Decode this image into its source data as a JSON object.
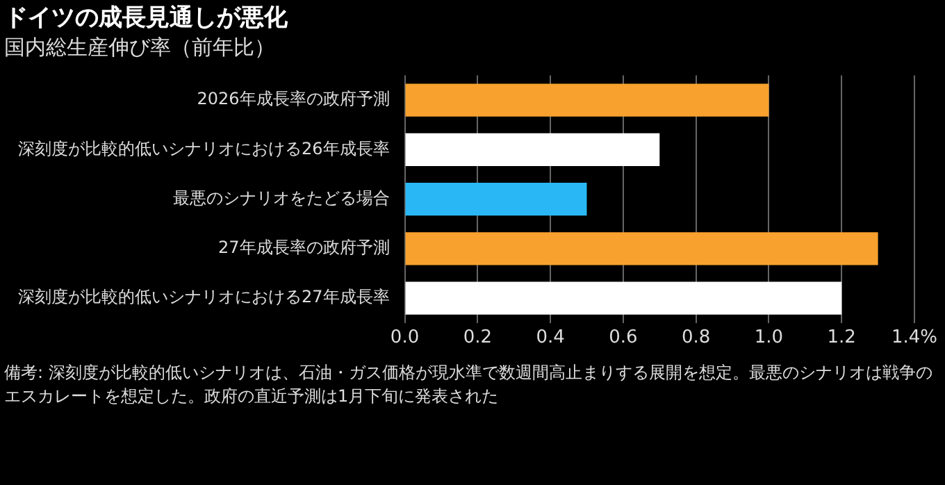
{
  "chart_data": {
    "type": "bar",
    "orientation": "horizontal",
    "title": "ドイツの成長見通しが悪化",
    "subtitle": "国内総生産伸び率（前年比）",
    "categories": [
      "2026年成長率の政府予測",
      "深刻度が比較的低いシナリオにおける26年成長率",
      "最悪のシナリオをたどる場合",
      "27年成長率の政府予測",
      "深刻度が比較的低いシナリオにおける27年成長率"
    ],
    "values": [
      1.0,
      0.7,
      0.5,
      1.3,
      1.2
    ],
    "colors": [
      "#f8a12e",
      "#ffffff",
      "#29b8f5",
      "#f8a12e",
      "#ffffff"
    ],
    "xlim": [
      0,
      1.4
    ],
    "xticks": [
      {
        "value": 0,
        "label": "0.0"
      },
      {
        "value": 0.2,
        "label": "0.2"
      },
      {
        "value": 0.4,
        "label": "0.4"
      },
      {
        "value": 0.6,
        "label": "0.6"
      },
      {
        "value": 0.8,
        "label": "0.8"
      },
      {
        "value": 1.0,
        "label": "1.0"
      },
      {
        "value": 1.2,
        "label": "1.2"
      },
      {
        "value": 1.4,
        "label": "1.4%"
      }
    ],
    "grid": "x",
    "legend": false,
    "annotations": [
      "備考: 深刻度が比較的低いシナリオは、石油・ガス価格が現水準で数週間高止まりする展開を想定。最悪のシナリオは戦争のエスカレートを想定した。政府の直近予測は1月下旬に発表された"
    ]
  }
}
